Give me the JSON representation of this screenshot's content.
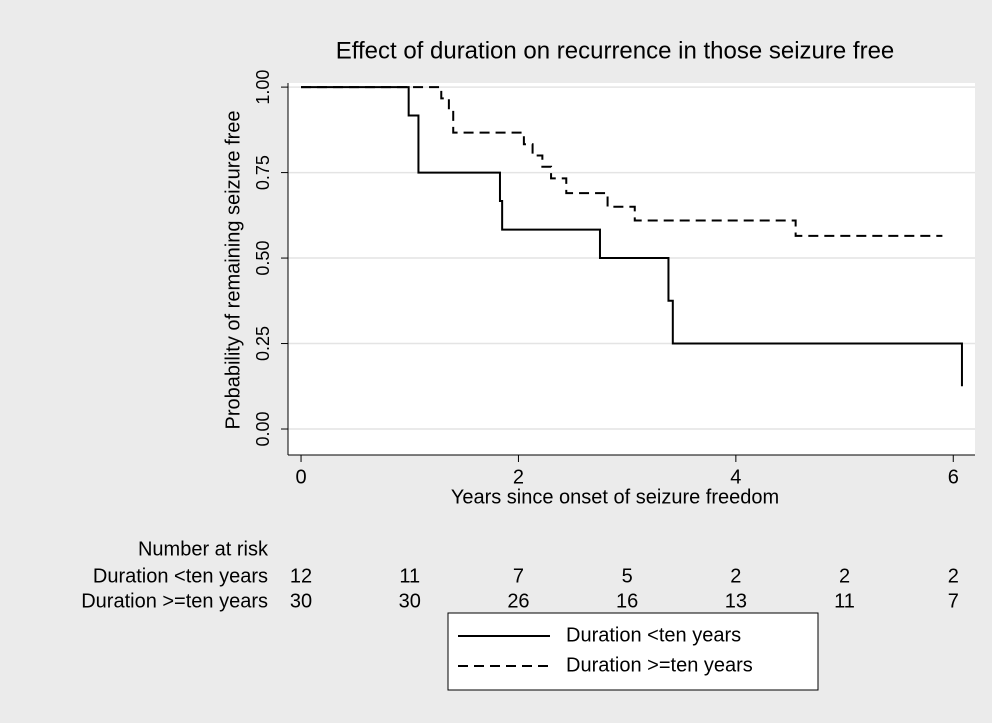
{
  "chart_data": {
    "type": "step",
    "title": "Effect of duration on recurrence in those seizure free",
    "xlabel": "Years since onset of seizure freedom",
    "ylabel": "Probability of remaining seizure free",
    "xlim": [
      -0.12,
      6.2
    ],
    "ylim": [
      -0.076,
      1.012
    ],
    "xticks": [
      0,
      2,
      4,
      6
    ],
    "yticks": [
      {
        "value": 0,
        "label": "0.00"
      },
      0.25,
      {
        "value": 0.5,
        "label": "0.50"
      },
      0.75,
      {
        "value": 1,
        "label": "1.00"
      }
    ],
    "grid": true,
    "series": [
      {
        "name": "Duration <ten years",
        "color": "#000000",
        "style": "solid",
        "x": [
          0,
          0.99,
          1.08,
          1.83,
          1.85,
          2.75,
          3.38,
          3.42,
          6.08
        ],
        "values": [
          1,
          0.917,
          0.75,
          0.667,
          0.583,
          0.5,
          0.375,
          0.25,
          0.125
        ]
      },
      {
        "name": "Duration >=ten years",
        "color": "#000000",
        "style": "dashed",
        "x": [
          0,
          1.29,
          1.36,
          1.4,
          2.05,
          2.13,
          2.22,
          2.3,
          2.44,
          2.82,
          3.07,
          4.55,
          5.9
        ],
        "values": [
          1,
          0.967,
          0.933,
          0.867,
          0.833,
          0.8,
          0.767,
          0.733,
          0.69,
          0.65,
          0.61,
          0.565,
          0.565
        ]
      }
    ],
    "risk_table": {
      "title": "Number at risk",
      "rows": [
        {
          "label": "Duration <ten years",
          "counts": [
            12,
            11,
            7,
            5,
            2,
            2,
            2
          ]
        },
        {
          "label": "Duration >=ten years",
          "counts": [
            30,
            30,
            26,
            16,
            13,
            11,
            7
          ]
        }
      ]
    }
  }
}
